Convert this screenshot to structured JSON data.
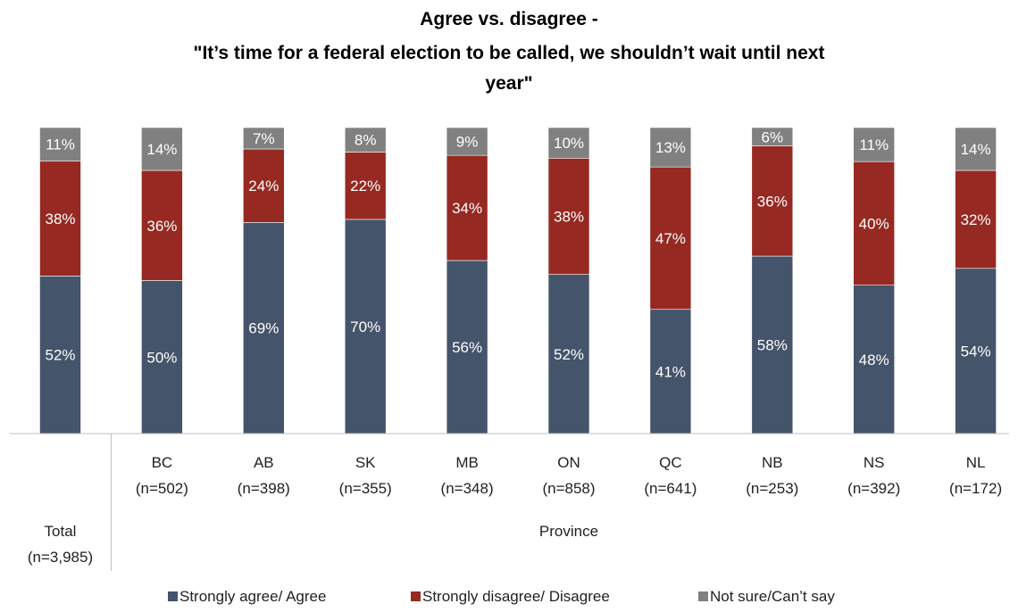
{
  "chart_data": {
    "type": "bar",
    "stacked": true,
    "percent": true,
    "title": "Agree vs. disagree -",
    "subtitle_lines": [
      "\"It’s time for a federal election to be called, we shouldn’t wait until next",
      "year\""
    ],
    "categories": [
      {
        "line1": "Total",
        "line2": "(n=3,985)"
      },
      {
        "line1": "BC",
        "line2": "(n=502)"
      },
      {
        "line1": "AB",
        "line2": "(n=398)"
      },
      {
        "line1": "SK",
        "line2": "(n=355)"
      },
      {
        "line1": "MB",
        "line2": "(n=348)"
      },
      {
        "line1": "ON",
        "line2": "(n=858)"
      },
      {
        "line1": "QC",
        "line2": "(n=641)"
      },
      {
        "line1": "NB",
        "line2": "(n=253)"
      },
      {
        "line1": "NS",
        "line2": "(n=392)"
      },
      {
        "line1": "NL",
        "line2": "(n=172)"
      }
    ],
    "group_label": "Province",
    "series": [
      {
        "name": "Strongly agree/ Agree",
        "color": "#44546a",
        "values": [
          52,
          50,
          69,
          70,
          56,
          52,
          41,
          58,
          48,
          54
        ]
      },
      {
        "name": "Strongly disagree/ Disagree",
        "color": "#962922",
        "values": [
          38,
          36,
          24,
          22,
          34,
          38,
          47,
          36,
          40,
          32
        ]
      },
      {
        "name": "Not sure/Can’t say",
        "color": "#808080",
        "values": [
          11,
          14,
          7,
          8,
          9,
          10,
          13,
          6,
          11,
          14
        ]
      }
    ],
    "ylim": [
      0,
      100
    ],
    "legend_position": "bottom",
    "grid": false
  }
}
